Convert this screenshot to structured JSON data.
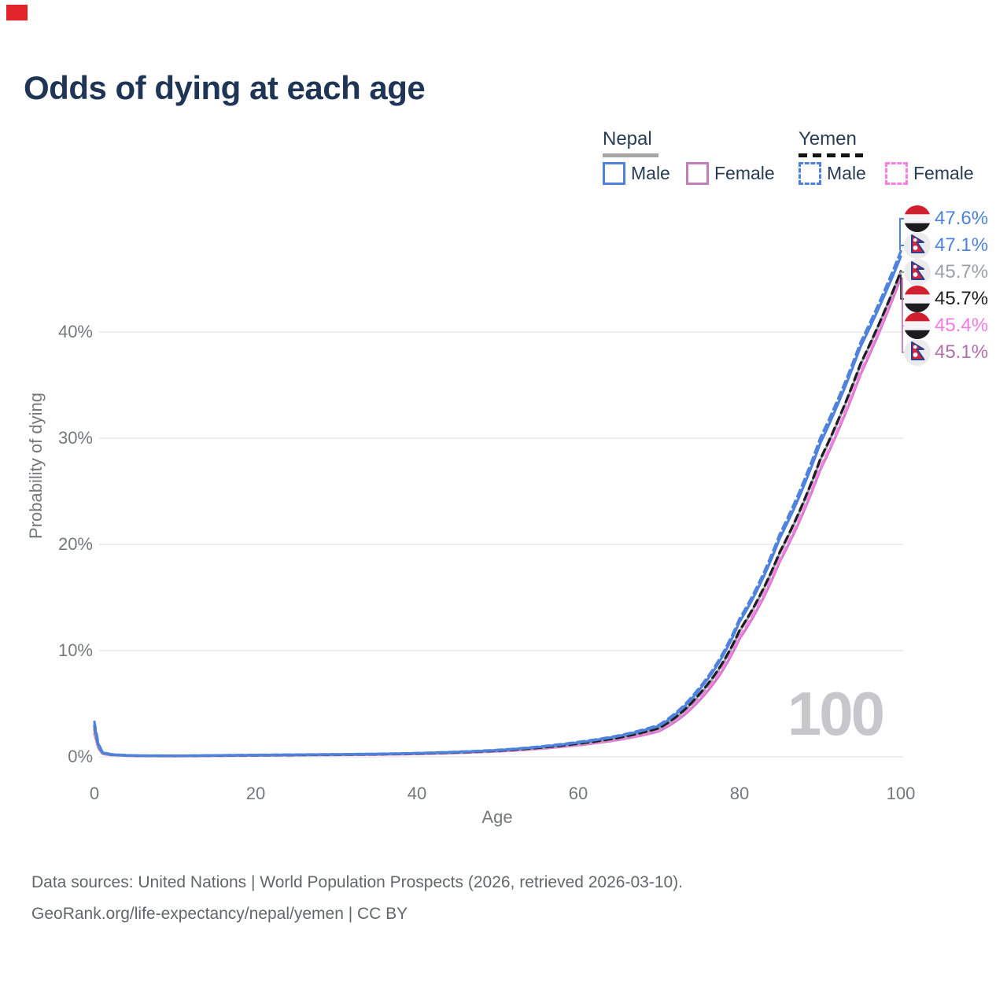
{
  "header": {
    "title": "Odds of dying at each age"
  },
  "legend": {
    "groups": [
      {
        "name": "Nepal",
        "line_style": "solid",
        "underline_color": "#a6a6a6",
        "items": [
          {
            "label": "Male",
            "color": "#4e82dd"
          },
          {
            "label": "Female",
            "color": "#c07eba"
          }
        ]
      },
      {
        "name": "Yemen",
        "line_style": "dashed",
        "underline_color": "#141414",
        "items": [
          {
            "label": "Male",
            "color": "#4e82dd"
          },
          {
            "label": "Female",
            "color": "#fb7de7"
          }
        ]
      }
    ]
  },
  "y_axis": {
    "title": "Probability of dying",
    "ticks": [
      "0%",
      "10%",
      "20%",
      "30%",
      "40%"
    ],
    "tick_values": [
      0,
      10,
      20,
      30,
      40
    ]
  },
  "x_axis": {
    "title": "Age",
    "ticks": [
      "0",
      "20",
      "40",
      "60",
      "80",
      "100"
    ],
    "tick_values": [
      0,
      20,
      40,
      60,
      80,
      100
    ]
  },
  "watermark": "100",
  "end_labels": [
    {
      "flag": "yemen",
      "value": "47.6%",
      "color": "#4e82dd"
    },
    {
      "flag": "nepal",
      "value": "47.1%",
      "color": "#4e82dd"
    },
    {
      "flag": "nepal",
      "value": "45.7%",
      "color": "#9ba0a6"
    },
    {
      "flag": "yemen",
      "value": "45.7%",
      "color": "#1e1e22"
    },
    {
      "flag": "yemen",
      "value": "45.4%",
      "color": "#f67ae3"
    },
    {
      "flag": "nepal",
      "value": "45.1%",
      "color": "#b470ae"
    }
  ],
  "footer": {
    "line1": "Data sources: United Nations | World Population Prospects (2026, retrieved 2026-03-10).",
    "line2": "GeoRank.org/life-expectancy/nepal/yemen | CC BY"
  },
  "chart_data": {
    "type": "line",
    "title": "Odds of dying at each age",
    "xlabel": "Age",
    "ylabel": "Probability of dying",
    "x_range": [
      0,
      100
    ],
    "y_range_pct": [
      0,
      48
    ],
    "y_ticks_pct": [
      0,
      10,
      20,
      30,
      40
    ],
    "grid": "horizontal",
    "legend_position": "top-right",
    "ages": [
      0,
      1,
      2,
      5,
      10,
      15,
      20,
      25,
      30,
      35,
      40,
      45,
      50,
      55,
      60,
      65,
      70,
      75,
      80,
      85,
      90,
      95,
      100
    ],
    "series": [
      {
        "id": "nepal-female",
        "name": "Nepal Female",
        "country": "Nepal",
        "sex": "female",
        "color": "#c67ec0",
        "dash": "solid",
        "end_label": "45.1%",
        "values_pct": [
          2.2,
          0.3,
          0.17,
          0.09,
          0.07,
          0.1,
          0.12,
          0.15,
          0.18,
          0.21,
          0.27,
          0.37,
          0.51,
          0.75,
          1.1,
          1.6,
          2.4,
          5.3,
          11.1,
          18.4,
          27.0,
          36.0,
          45.1
        ]
      },
      {
        "id": "yemen-female",
        "name": "Yemen Female",
        "country": "Yemen",
        "sex": "female",
        "color": "#fb7de7",
        "dash": "dashed",
        "end_label": "45.4%",
        "values_pct": [
          2.5,
          0.35,
          0.19,
          0.1,
          0.08,
          0.11,
          0.13,
          0.16,
          0.19,
          0.22,
          0.28,
          0.38,
          0.53,
          0.78,
          1.15,
          1.65,
          2.5,
          5.5,
          11.3,
          18.6,
          27.2,
          36.2,
          45.4
        ]
      },
      {
        "id": "nepal-all",
        "name": "Nepal (all)",
        "country": "Nepal",
        "sex": "all",
        "color": "#9b9ea3",
        "dash": "solid",
        "end_label": "45.7%",
        "values_pct": [
          2.6,
          0.35,
          0.2,
          0.1,
          0.08,
          0.11,
          0.14,
          0.17,
          0.2,
          0.24,
          0.3,
          0.41,
          0.57,
          0.83,
          1.22,
          1.78,
          2.65,
          5.8,
          11.8,
          19.2,
          27.9,
          36.9,
          45.7
        ]
      },
      {
        "id": "yemen-all",
        "name": "Yemen (all)",
        "country": "Yemen",
        "sex": "all",
        "color": "#1e1e22",
        "dash": "dashed",
        "end_label": "45.7%",
        "values_pct": [
          2.9,
          0.4,
          0.22,
          0.11,
          0.09,
          0.12,
          0.15,
          0.18,
          0.21,
          0.25,
          0.31,
          0.42,
          0.58,
          0.85,
          1.25,
          1.8,
          2.7,
          5.9,
          11.9,
          19.3,
          28.0,
          37.0,
          45.7
        ]
      },
      {
        "id": "nepal-male",
        "name": "Nepal Male",
        "country": "Nepal",
        "sex": "male",
        "color": "#4e82dd",
        "dash": "solid",
        "end_label": "47.1%",
        "values_pct": [
          3.0,
          0.4,
          0.22,
          0.11,
          0.09,
          0.13,
          0.17,
          0.2,
          0.23,
          0.27,
          0.34,
          0.45,
          0.62,
          0.92,
          1.35,
          1.95,
          2.9,
          6.3,
          12.7,
          20.6,
          29.5,
          38.6,
          47.1
        ]
      },
      {
        "id": "yemen-male",
        "name": "Yemen Male",
        "country": "Yemen",
        "sex": "male",
        "color": "#4e82dd",
        "dash": "dashed",
        "end_label": "47.6%",
        "values_pct": [
          3.3,
          0.45,
          0.25,
          0.12,
          0.1,
          0.14,
          0.18,
          0.21,
          0.24,
          0.28,
          0.35,
          0.47,
          0.65,
          0.95,
          1.4,
          2.0,
          3.0,
          6.5,
          13.0,
          21.0,
          30.0,
          39.0,
          47.6
        ]
      }
    ]
  }
}
